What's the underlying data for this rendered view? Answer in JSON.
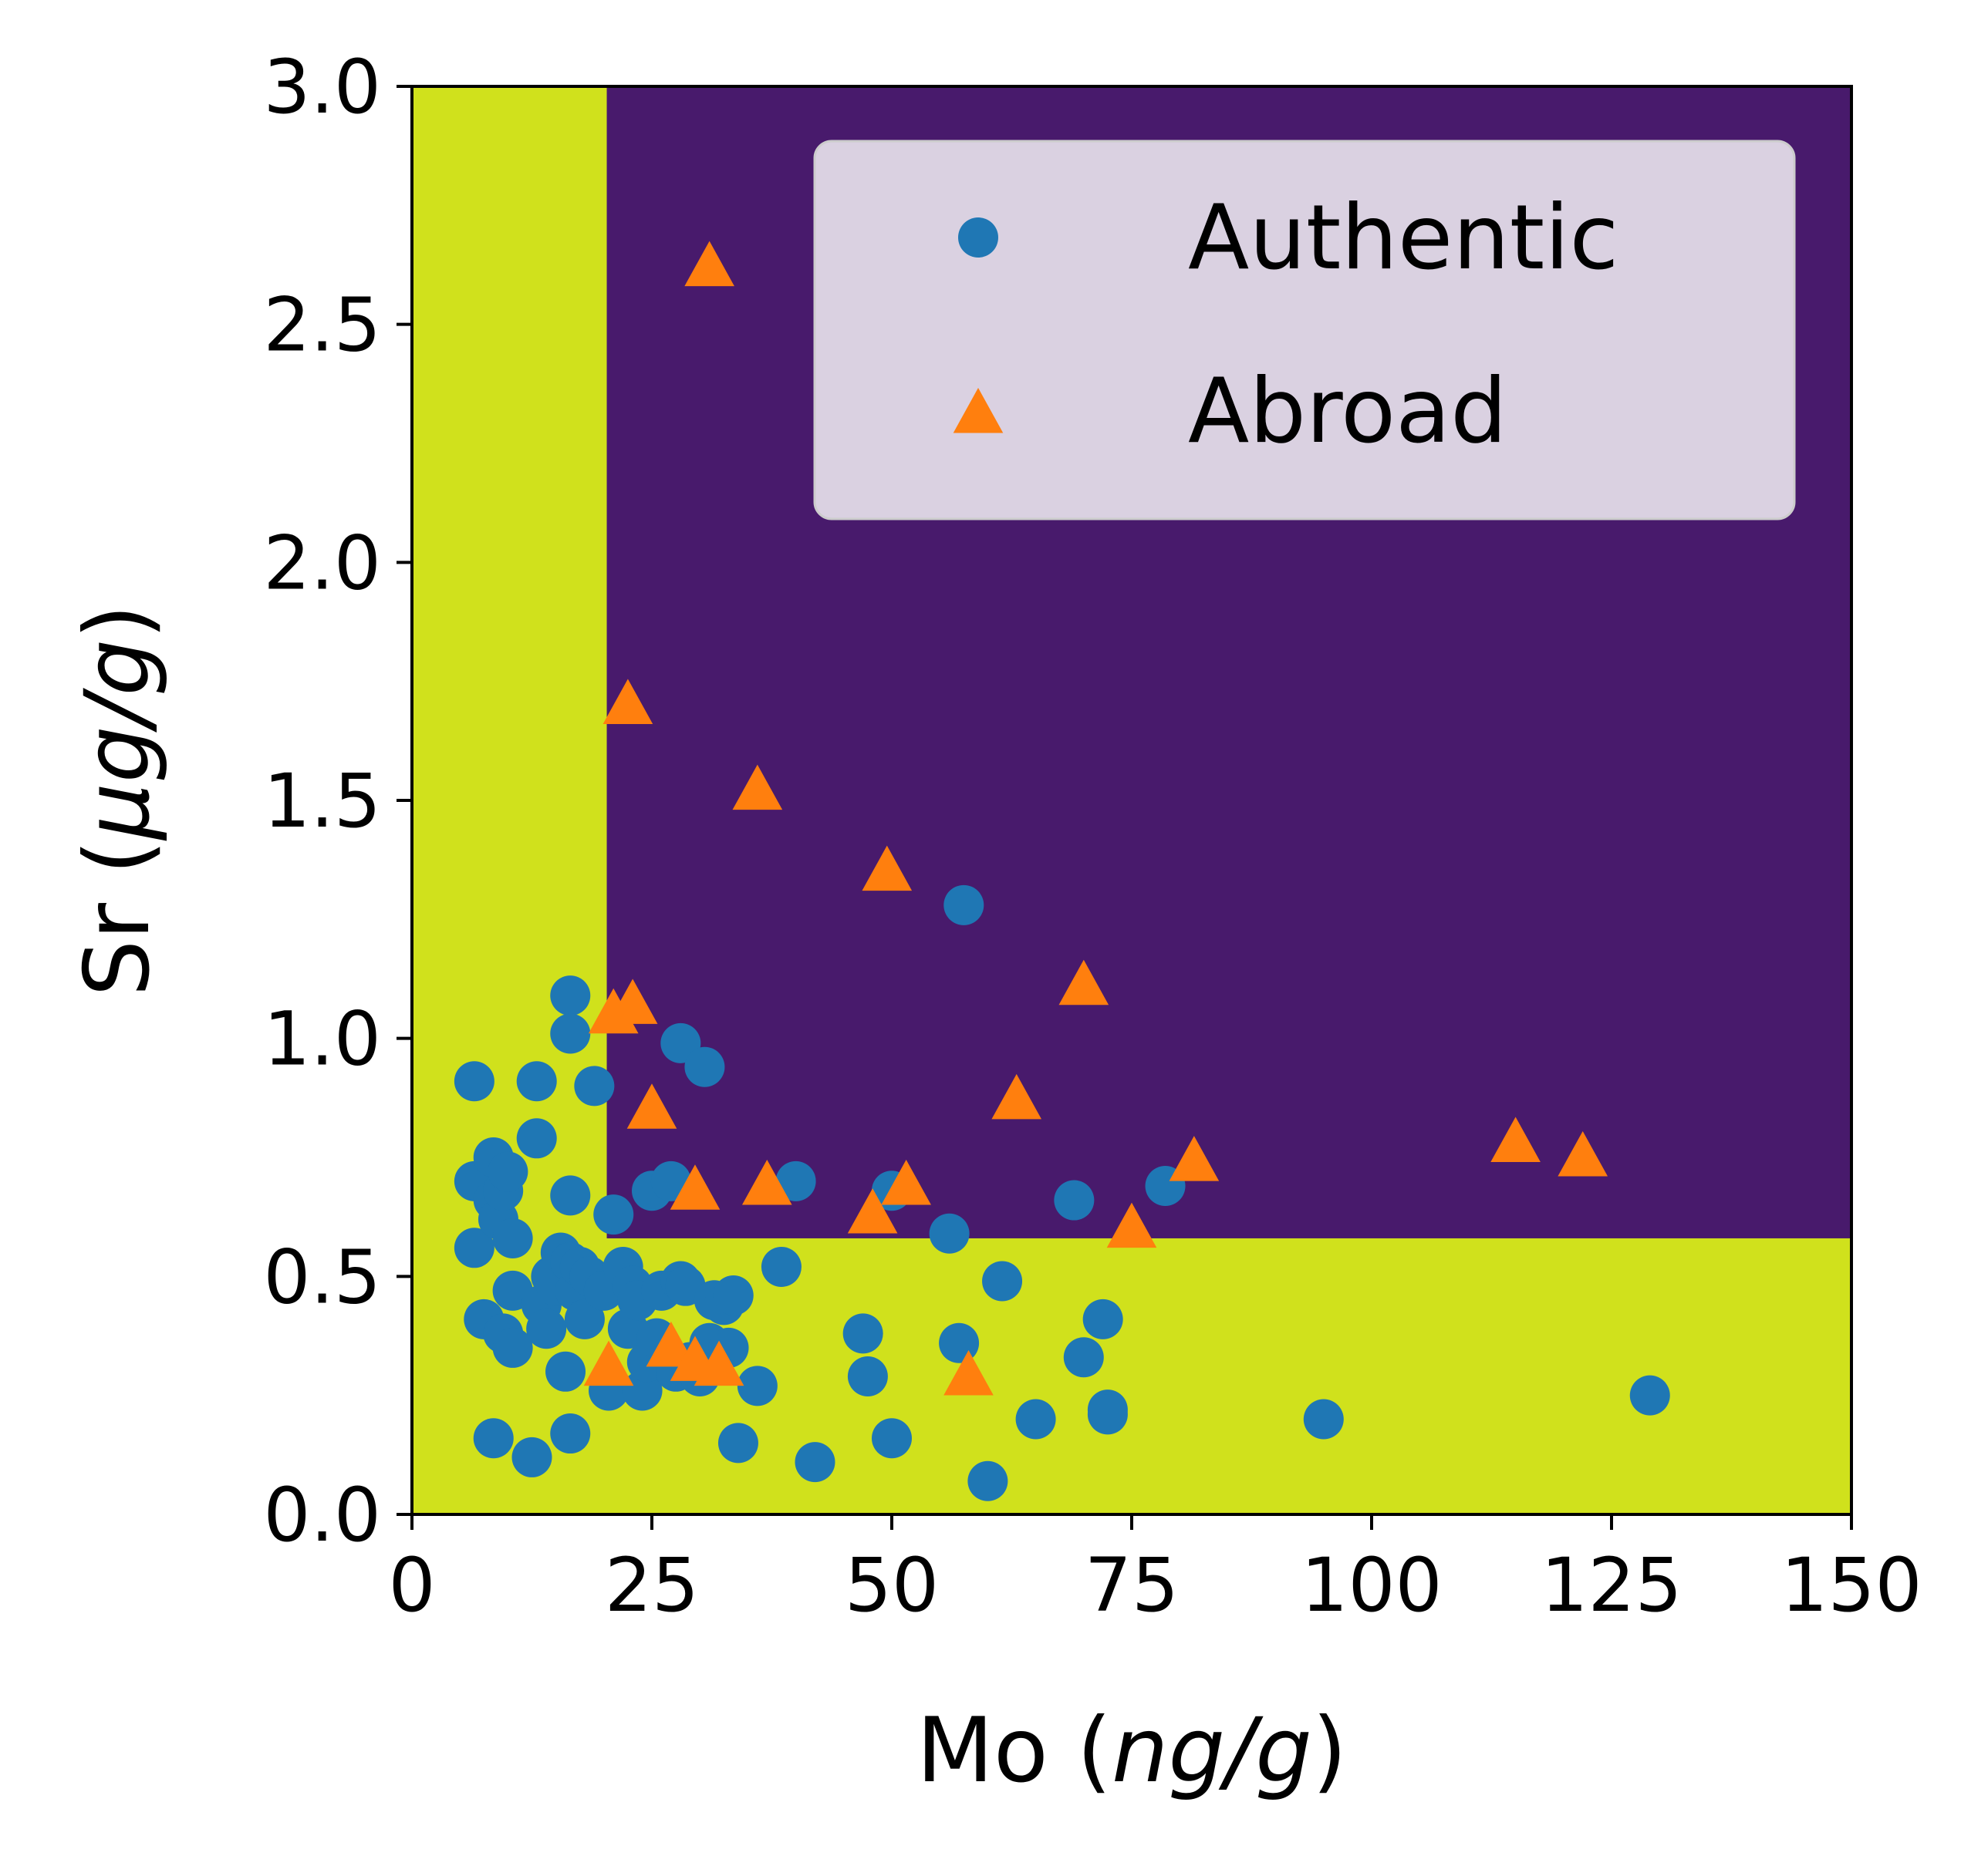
{
  "chart_data": {
    "type": "scatter",
    "title": "",
    "xlabel_main": "Mo (",
    "xlabel_unit": "ng/g",
    "xlabel_close": ")",
    "ylabel_main": "Sr (",
    "ylabel_unit": "μg/g",
    "ylabel_close": ")",
    "xlim": [
      0,
      150
    ],
    "ylim": [
      0,
      3.0
    ],
    "xticks": [
      0,
      25,
      50,
      75,
      100,
      125,
      150
    ],
    "xtick_labels": [
      "0",
      "25",
      "50",
      "75",
      "100",
      "125",
      "150"
    ],
    "yticks": [
      0,
      0.5,
      1.0,
      1.5,
      2.0,
      2.5,
      3.0
    ],
    "ytick_labels": [
      "0.0",
      "0.5",
      "1.0",
      "1.5",
      "2.0",
      "2.5",
      "3.0"
    ],
    "grid": false,
    "legend_position": "top-right",
    "decision_regions": {
      "mo_threshold": 20.3,
      "sr_threshold": 0.58,
      "authentic_color": "#d0e11c",
      "abroad_color": "#481a6c",
      "rule": "Abroad region where Mo > 20.3 and Sr > 0.58; Authentic elsewhere"
    },
    "series": [
      {
        "name": "Authentic",
        "marker": "circle",
        "color": "#1f77b4",
        "points": [
          [
            6.5,
            0.91
          ],
          [
            6.5,
            0.56
          ],
          [
            6.5,
            0.7
          ],
          [
            7.5,
            0.41
          ],
          [
            8.5,
            0.16
          ],
          [
            8.5,
            0.75
          ],
          [
            8.5,
            0.66
          ],
          [
            9.0,
            0.62
          ],
          [
            9.5,
            0.68
          ],
          [
            9.5,
            0.38
          ],
          [
            10.0,
            0.72
          ],
          [
            10.5,
            0.58
          ],
          [
            10.5,
            0.35
          ],
          [
            10.5,
            0.47
          ],
          [
            12.5,
            0.12
          ],
          [
            13.0,
            0.91
          ],
          [
            13.0,
            0.79
          ],
          [
            13.5,
            0.44
          ],
          [
            14.0,
            0.39
          ],
          [
            14.5,
            0.5
          ],
          [
            15.0,
            0.48
          ],
          [
            15.5,
            0.55
          ],
          [
            16.0,
            0.3
          ],
          [
            16.5,
            0.53
          ],
          [
            16.5,
            1.09
          ],
          [
            16.5,
            1.01
          ],
          [
            16.5,
            0.67
          ],
          [
            16.5,
            0.17
          ],
          [
            17.0,
            0.47
          ],
          [
            17.5,
            0.52
          ],
          [
            18.0,
            0.41
          ],
          [
            18.5,
            0.5
          ],
          [
            19.0,
            0.9
          ],
          [
            20.0,
            0.47
          ],
          [
            20.5,
            0.26
          ],
          [
            21.0,
            0.63
          ],
          [
            22.0,
            0.52
          ],
          [
            22.5,
            0.39
          ],
          [
            23.0,
            0.48
          ],
          [
            23.5,
            0.45
          ],
          [
            24.0,
            0.26
          ],
          [
            24.5,
            0.32
          ],
          [
            25.0,
            0.68
          ],
          [
            25.5,
            0.37
          ],
          [
            26.0,
            0.47
          ],
          [
            27.0,
            0.7
          ],
          [
            27.5,
            0.3
          ],
          [
            28.0,
            0.99
          ],
          [
            28.0,
            0.49
          ],
          [
            28.5,
            0.48
          ],
          [
            29.0,
            0.32
          ],
          [
            30.0,
            0.29
          ],
          [
            30.5,
            0.94
          ],
          [
            31.0,
            0.36
          ],
          [
            31.5,
            0.45
          ],
          [
            32.5,
            0.44
          ],
          [
            33.0,
            0.35
          ],
          [
            33.5,
            0.46
          ],
          [
            34.0,
            0.15
          ],
          [
            36.0,
            0.27
          ],
          [
            38.5,
            0.52
          ],
          [
            40.0,
            0.7
          ],
          [
            42.0,
            0.11
          ],
          [
            47.0,
            0.38
          ],
          [
            47.5,
            0.29
          ],
          [
            50.0,
            0.68
          ],
          [
            50.0,
            0.16
          ],
          [
            56.0,
            0.59
          ],
          [
            57.0,
            0.36
          ],
          [
            57.5,
            1.28
          ],
          [
            60.0,
            0.07
          ],
          [
            61.5,
            0.49
          ],
          [
            65.0,
            0.2
          ],
          [
            69.0,
            0.66
          ],
          [
            70.0,
            0.33
          ],
          [
            72.0,
            0.41
          ],
          [
            72.5,
            0.22
          ],
          [
            72.5,
            0.21
          ],
          [
            78.5,
            0.69
          ],
          [
            95.0,
            0.2
          ],
          [
            129.0,
            0.25
          ]
        ]
      },
      {
        "name": "Abroad",
        "marker": "triangle",
        "color": "#ff7f0e",
        "points": [
          [
            31.0,
            2.62
          ],
          [
            22.5,
            1.7
          ],
          [
            36.0,
            1.52
          ],
          [
            49.5,
            1.35
          ],
          [
            70.0,
            1.11
          ],
          [
            21.0,
            1.05
          ],
          [
            23.0,
            1.07
          ],
          [
            25.0,
            0.85
          ],
          [
            63.0,
            0.87
          ],
          [
            29.5,
            0.68
          ],
          [
            37.0,
            0.69
          ],
          [
            51.5,
            0.69
          ],
          [
            48.0,
            0.63
          ],
          [
            75.0,
            0.6
          ],
          [
            81.5,
            0.74
          ],
          [
            115.0,
            0.78
          ],
          [
            122.0,
            0.75
          ],
          [
            20.5,
            0.31
          ],
          [
            27.0,
            0.35
          ],
          [
            29.5,
            0.32
          ],
          [
            32.0,
            0.31
          ],
          [
            58.0,
            0.29
          ]
        ]
      }
    ]
  },
  "legend": {
    "entries": [
      {
        "label": "Authentic",
        "marker": "circle",
        "color": "#1f77b4"
      },
      {
        "label": "Abroad",
        "marker": "triangle",
        "color": "#ff7f0e"
      }
    ]
  }
}
